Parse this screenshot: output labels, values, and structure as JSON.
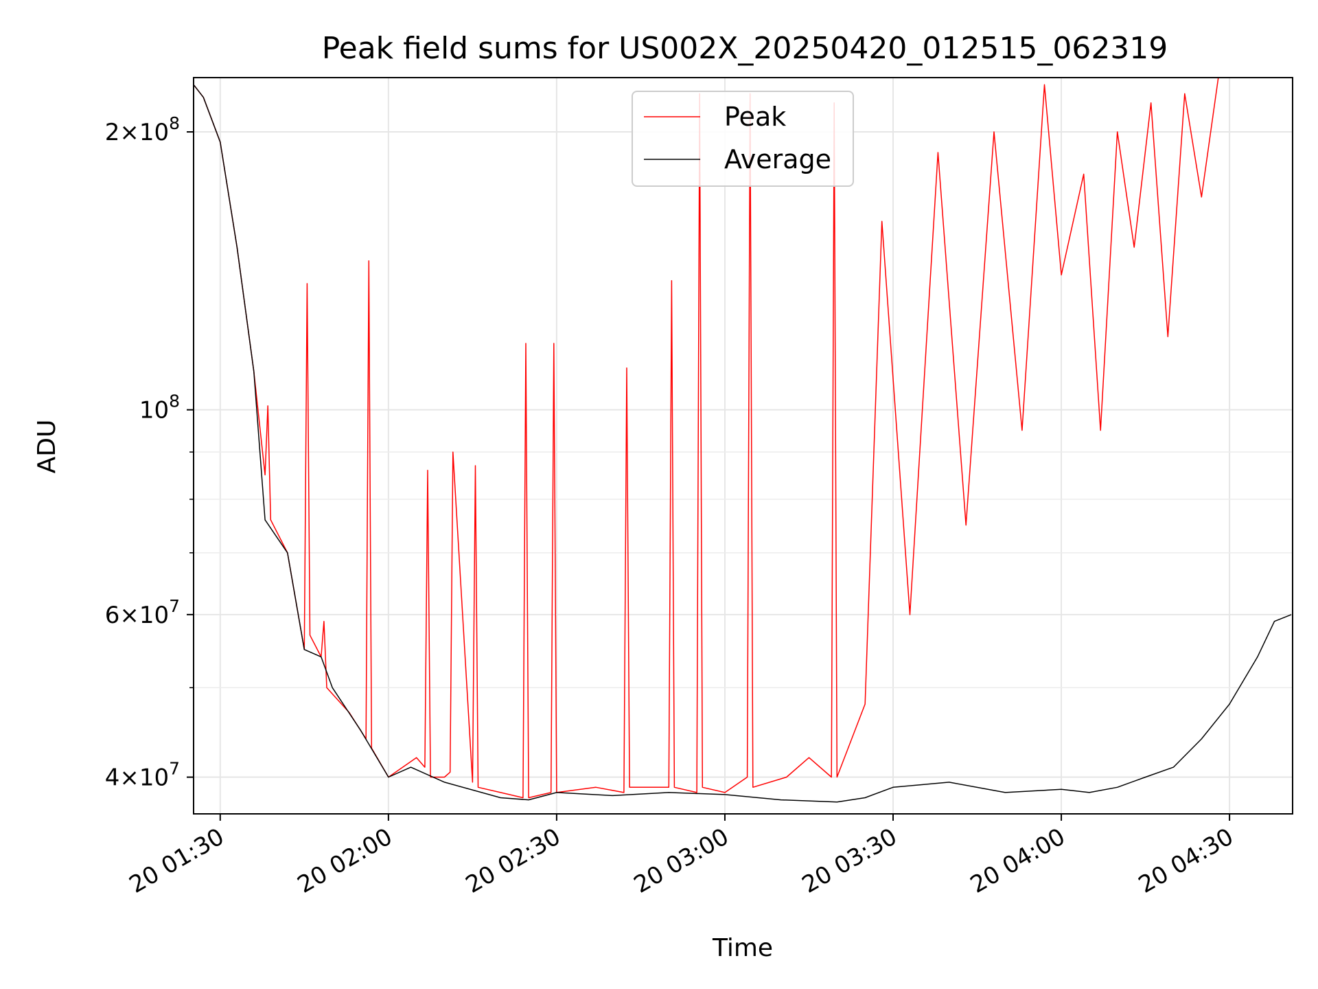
{
  "chart_data": {
    "type": "line",
    "title": "Peak field sums for US002X_20250420_012515_062319",
    "xlabel": "Time",
    "ylabel": "ADU",
    "yscale": "log",
    "ylim": [
      36500000,
      229000000
    ],
    "xlim": [
      "2025-04-20 01:25:15",
      "2025-04-20 04:41:15"
    ],
    "x_ticks": [
      {
        "value": "2025-04-20 01:30",
        "label": "20 01:30"
      },
      {
        "value": "2025-04-20 02:00",
        "label": "20 02:00"
      },
      {
        "value": "2025-04-20 02:30",
        "label": "20 02:30"
      },
      {
        "value": "2025-04-20 03:00",
        "label": "20 03:00"
      },
      {
        "value": "2025-04-20 03:30",
        "label": "20 03:30"
      },
      {
        "value": "2025-04-20 04:00",
        "label": "20 04:00"
      },
      {
        "value": "2025-04-20 04:30",
        "label": "20 04:30"
      }
    ],
    "y_ticks": [
      {
        "value": 40000000,
        "mantissa": "4",
        "exp": "7"
      },
      {
        "value": 60000000,
        "mantissa": "6",
        "exp": "7"
      },
      {
        "value": 100000000,
        "mantissa": "",
        "exp": "8"
      },
      {
        "value": 200000000,
        "mantissa": "2",
        "exp": "8"
      }
    ],
    "y_minor_ticks": [
      50000000,
      70000000,
      80000000,
      90000000
    ],
    "grid": true,
    "legend": {
      "position": "upper center",
      "entries": [
        "Peak",
        "Average"
      ]
    },
    "series": [
      {
        "name": "Peak",
        "color": "#ff0000",
        "x": [
          "2025-04-20 01:25:15",
          "2025-04-20 01:27:00",
          "2025-04-20 01:30:00",
          "2025-04-20 01:33:00",
          "2025-04-20 01:36:00",
          "2025-04-20 01:38:00",
          "2025-04-20 01:38:30",
          "2025-04-20 01:39:00",
          "2025-04-20 01:42:00",
          "2025-04-20 01:45:00",
          "2025-04-20 01:45:30",
          "2025-04-20 01:46:00",
          "2025-04-20 01:48:00",
          "2025-04-20 01:48:30",
          "2025-04-20 01:49:00",
          "2025-04-20 01:53:00",
          "2025-04-20 01:56:00",
          "2025-04-20 01:56:30",
          "2025-04-20 01:57:00",
          "2025-04-20 02:00:00",
          "2025-04-20 02:05:00",
          "2025-04-20 02:06:30",
          "2025-04-20 02:07:00",
          "2025-04-20 02:07:30",
          "2025-04-20 02:10:00",
          "2025-04-20 02:11:00",
          "2025-04-20 02:11:30",
          "2025-04-20 02:15:00",
          "2025-04-20 02:15:30",
          "2025-04-20 02:16:00",
          "2025-04-20 02:20:00",
          "2025-04-20 02:24:00",
          "2025-04-20 02:24:30",
          "2025-04-20 02:25:00",
          "2025-04-20 02:29:00",
          "2025-04-20 02:29:30",
          "2025-04-20 02:30:00",
          "2025-04-20 02:37:00",
          "2025-04-20 02:42:00",
          "2025-04-20 02:42:30",
          "2025-04-20 02:43:00",
          "2025-04-20 02:50:00",
          "2025-04-20 02:50:30",
          "2025-04-20 02:51:00",
          "2025-04-20 02:55:00",
          "2025-04-20 02:55:30",
          "2025-04-20 02:56:00",
          "2025-04-20 03:00:00",
          "2025-04-20 03:04:00",
          "2025-04-20 03:04:30",
          "2025-04-20 03:05:00",
          "2025-04-20 03:11:00",
          "2025-04-20 03:15:00",
          "2025-04-20 03:19:00",
          "2025-04-20 03:19:30",
          "2025-04-20 03:20:00",
          "2025-04-20 03:25:00",
          "2025-04-20 03:28:00",
          "2025-04-20 03:33:00",
          "2025-04-20 03:38:00",
          "2025-04-20 03:43:00",
          "2025-04-20 03:48:00",
          "2025-04-20 03:53:00",
          "2025-04-20 03:57:00",
          "2025-04-20 04:00:00",
          "2025-04-20 04:04:00",
          "2025-04-20 04:07:00",
          "2025-04-20 04:10:00",
          "2025-04-20 04:13:00",
          "2025-04-20 04:16:00",
          "2025-04-20 04:19:00",
          "2025-04-20 04:22:00",
          "2025-04-20 04:25:00",
          "2025-04-20 04:28:00",
          "2025-04-20 04:31:00",
          "2025-04-20 04:34:00",
          "2025-04-20 04:37:00",
          "2025-04-20 04:41:00"
        ],
        "values": [
          225000000,
          218000000,
          195000000,
          150000000,
          110000000,
          85000000,
          101000000,
          76000000,
          70000000,
          55000000,
          137000000,
          57000000,
          54000000,
          59000000,
          50000000,
          47000000,
          44000000,
          145000000,
          43000000,
          40000000,
          42000000,
          41000000,
          86000000,
          40000000,
          40000000,
          40500000,
          90000000,
          39500000,
          87000000,
          39000000,
          38500000,
          38000000,
          118000000,
          38000000,
          38500000,
          118000000,
          38500000,
          39000000,
          38500000,
          111000000,
          39000000,
          39000000,
          138000000,
          39000000,
          38500000,
          220000000,
          39000000,
          38500000,
          40000000,
          220000000,
          39000000,
          40000000,
          42000000,
          40000000,
          215000000,
          40000000,
          48000000,
          160000000,
          60000000,
          190000000,
          75000000,
          200000000,
          95000000,
          225000000,
          140000000,
          180000000,
          95000000,
          200000000,
          150000000,
          215000000,
          120000000,
          220000000,
          170000000,
          229000000,
          229000000,
          229000000,
          229000000,
          229000000
        ]
      },
      {
        "name": "Average",
        "color": "#000000",
        "x": [
          "2025-04-20 01:25:15",
          "2025-04-20 01:27:00",
          "2025-04-20 01:30:00",
          "2025-04-20 01:33:00",
          "2025-04-20 01:36:00",
          "2025-04-20 01:38:00",
          "2025-04-20 01:42:00",
          "2025-04-20 01:45:00",
          "2025-04-20 01:48:00",
          "2025-04-20 01:50:00",
          "2025-04-20 01:55:00",
          "2025-04-20 02:00:00",
          "2025-04-20 02:04:00",
          "2025-04-20 02:10:00",
          "2025-04-20 02:20:00",
          "2025-04-20 02:25:00",
          "2025-04-20 02:30:00",
          "2025-04-20 02:40:00",
          "2025-04-20 02:50:00",
          "2025-04-20 03:00:00",
          "2025-04-20 03:10:00",
          "2025-04-20 03:20:00",
          "2025-04-20 03:25:00",
          "2025-04-20 03:30:00",
          "2025-04-20 03:40:00",
          "2025-04-20 03:50:00",
          "2025-04-20 04:00:00",
          "2025-04-20 04:05:00",
          "2025-04-20 04:10:00",
          "2025-04-20 04:15:00",
          "2025-04-20 04:20:00",
          "2025-04-20 04:25:00",
          "2025-04-20 04:30:00",
          "2025-04-20 04:35:00",
          "2025-04-20 04:38:00",
          "2025-04-20 04:41:00"
        ],
        "values": [
          225000000,
          218000000,
          195000000,
          150000000,
          110000000,
          76000000,
          70000000,
          55000000,
          54000000,
          50000000,
          45000000,
          40000000,
          41000000,
          39500000,
          38000000,
          37800000,
          38500000,
          38200000,
          38500000,
          38300000,
          37800000,
          37600000,
          38000000,
          39000000,
          39500000,
          38500000,
          38800000,
          38500000,
          39000000,
          40000000,
          41000000,
          44000000,
          48000000,
          54000000,
          59000000,
          60000000
        ]
      }
    ]
  }
}
